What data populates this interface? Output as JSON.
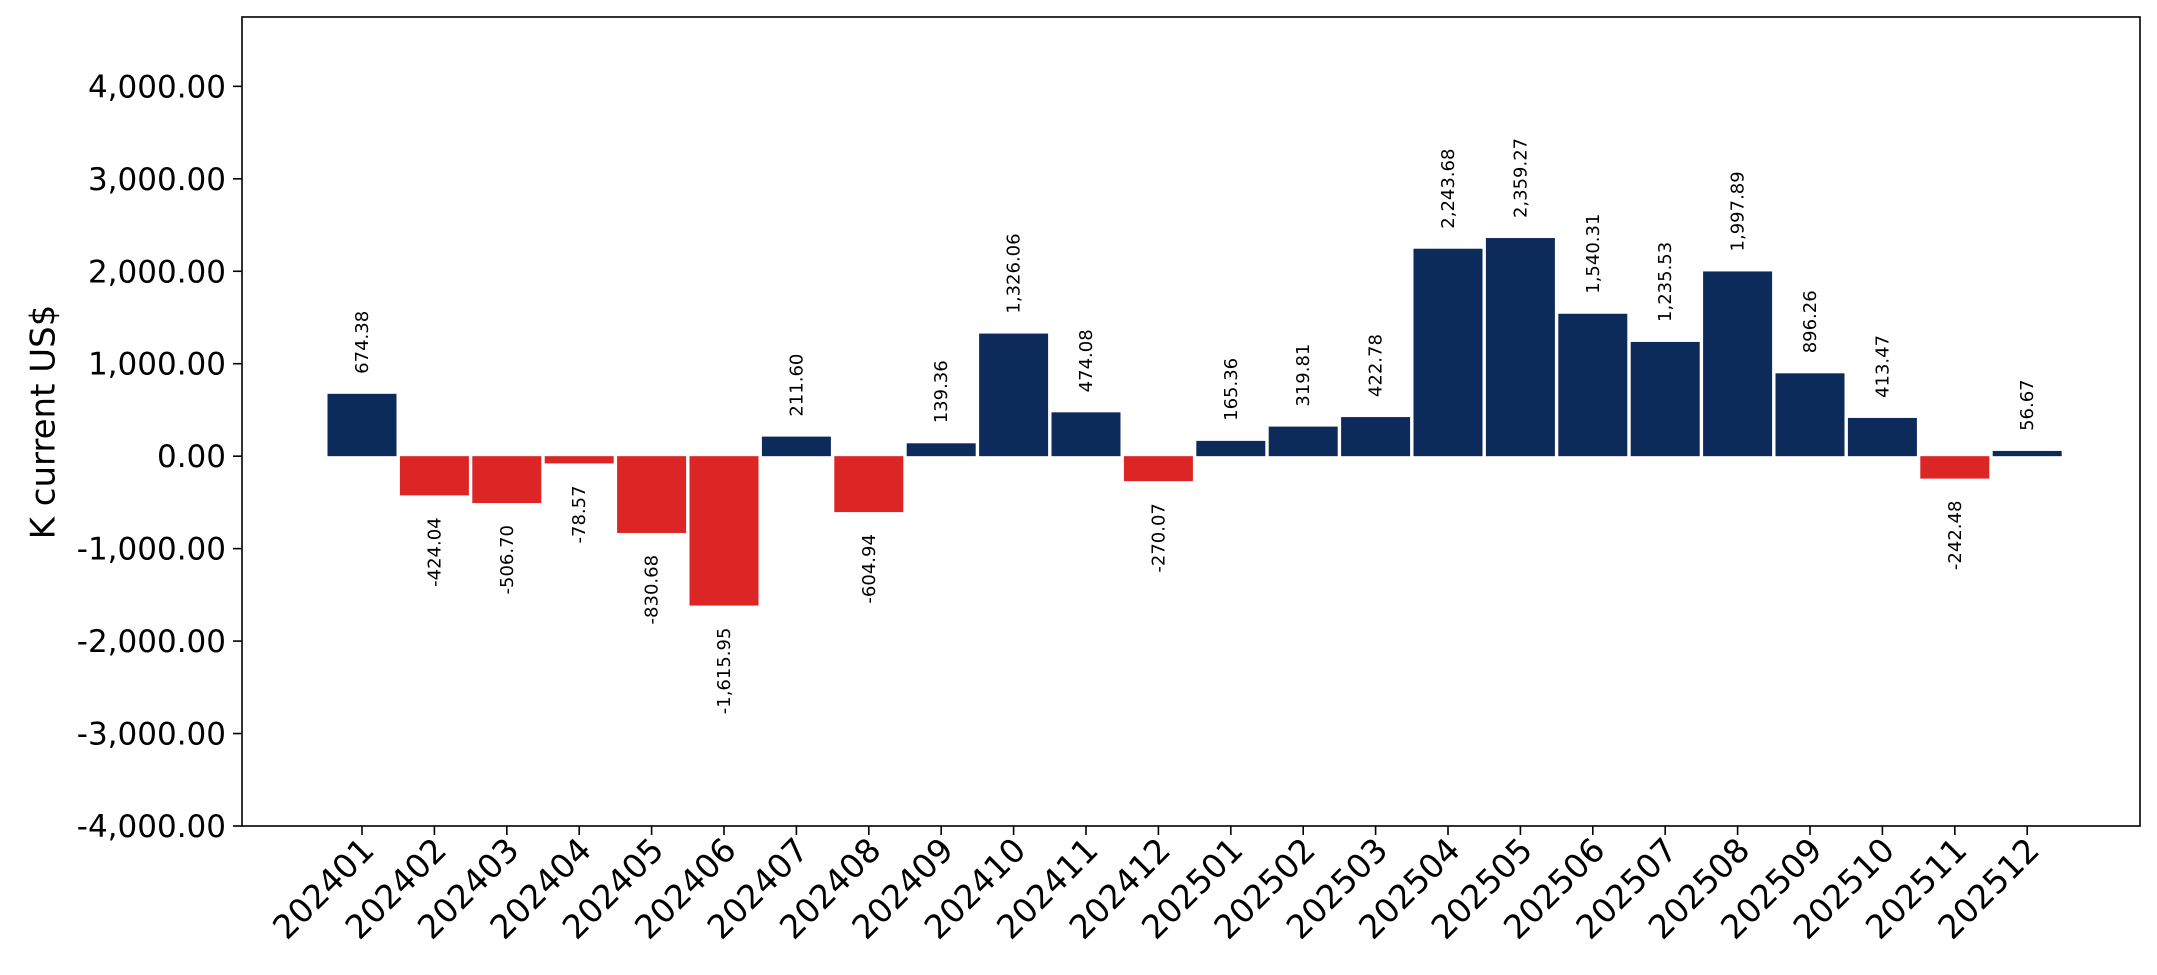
{
  "chart_data": {
    "type": "bar",
    "title": "",
    "xlabel": "",
    "ylabel": "K current US$",
    "ylim": [
      -4000,
      4750
    ],
    "yticks": [
      -4000,
      -3000,
      -2000,
      -1000,
      0,
      1000,
      2000,
      3000,
      4000
    ],
    "ytick_labels": [
      "-4,000.00",
      "-3,000.00",
      "-2,000.00",
      "-1,000.00",
      "0.00",
      "1,000.00",
      "2,000.00",
      "3,000.00",
      "4,000.00"
    ],
    "categories": [
      "202401",
      "202402",
      "202403",
      "202404",
      "202405",
      "202406",
      "202407",
      "202408",
      "202409",
      "202410",
      "202411",
      "202412",
      "202501",
      "202502",
      "202503",
      "202504",
      "202505",
      "202506",
      "202507",
      "202508",
      "202509",
      "202510",
      "202511",
      "202512"
    ],
    "values": [
      674.38,
      -424.04,
      -506.7,
      -78.57,
      -830.68,
      -1615.95,
      211.6,
      -604.94,
      139.36,
      1326.06,
      474.08,
      -270.07,
      165.36,
      319.81,
      422.78,
      2243.68,
      2359.27,
      1540.31,
      1235.53,
      1997.89,
      896.26,
      413.47,
      -242.48,
      56.67
    ],
    "value_labels": [
      "674.38",
      "-424.04",
      "-506.70",
      "-78.57",
      "-830.68",
      "-1,615.95",
      "211.60",
      "-604.94",
      "139.36",
      "1,326.06",
      "474.08",
      "-270.07",
      "165.36",
      "319.81",
      "422.78",
      "2,243.68",
      "2,359.27",
      "1,540.31",
      "1,235.53",
      "1,997.89",
      "896.26",
      "413.47",
      "-242.48",
      "56.67"
    ],
    "colors": {
      "positive": "#0d2b5a",
      "negative": "#dc2626"
    },
    "grid": false,
    "legend": "none"
  }
}
